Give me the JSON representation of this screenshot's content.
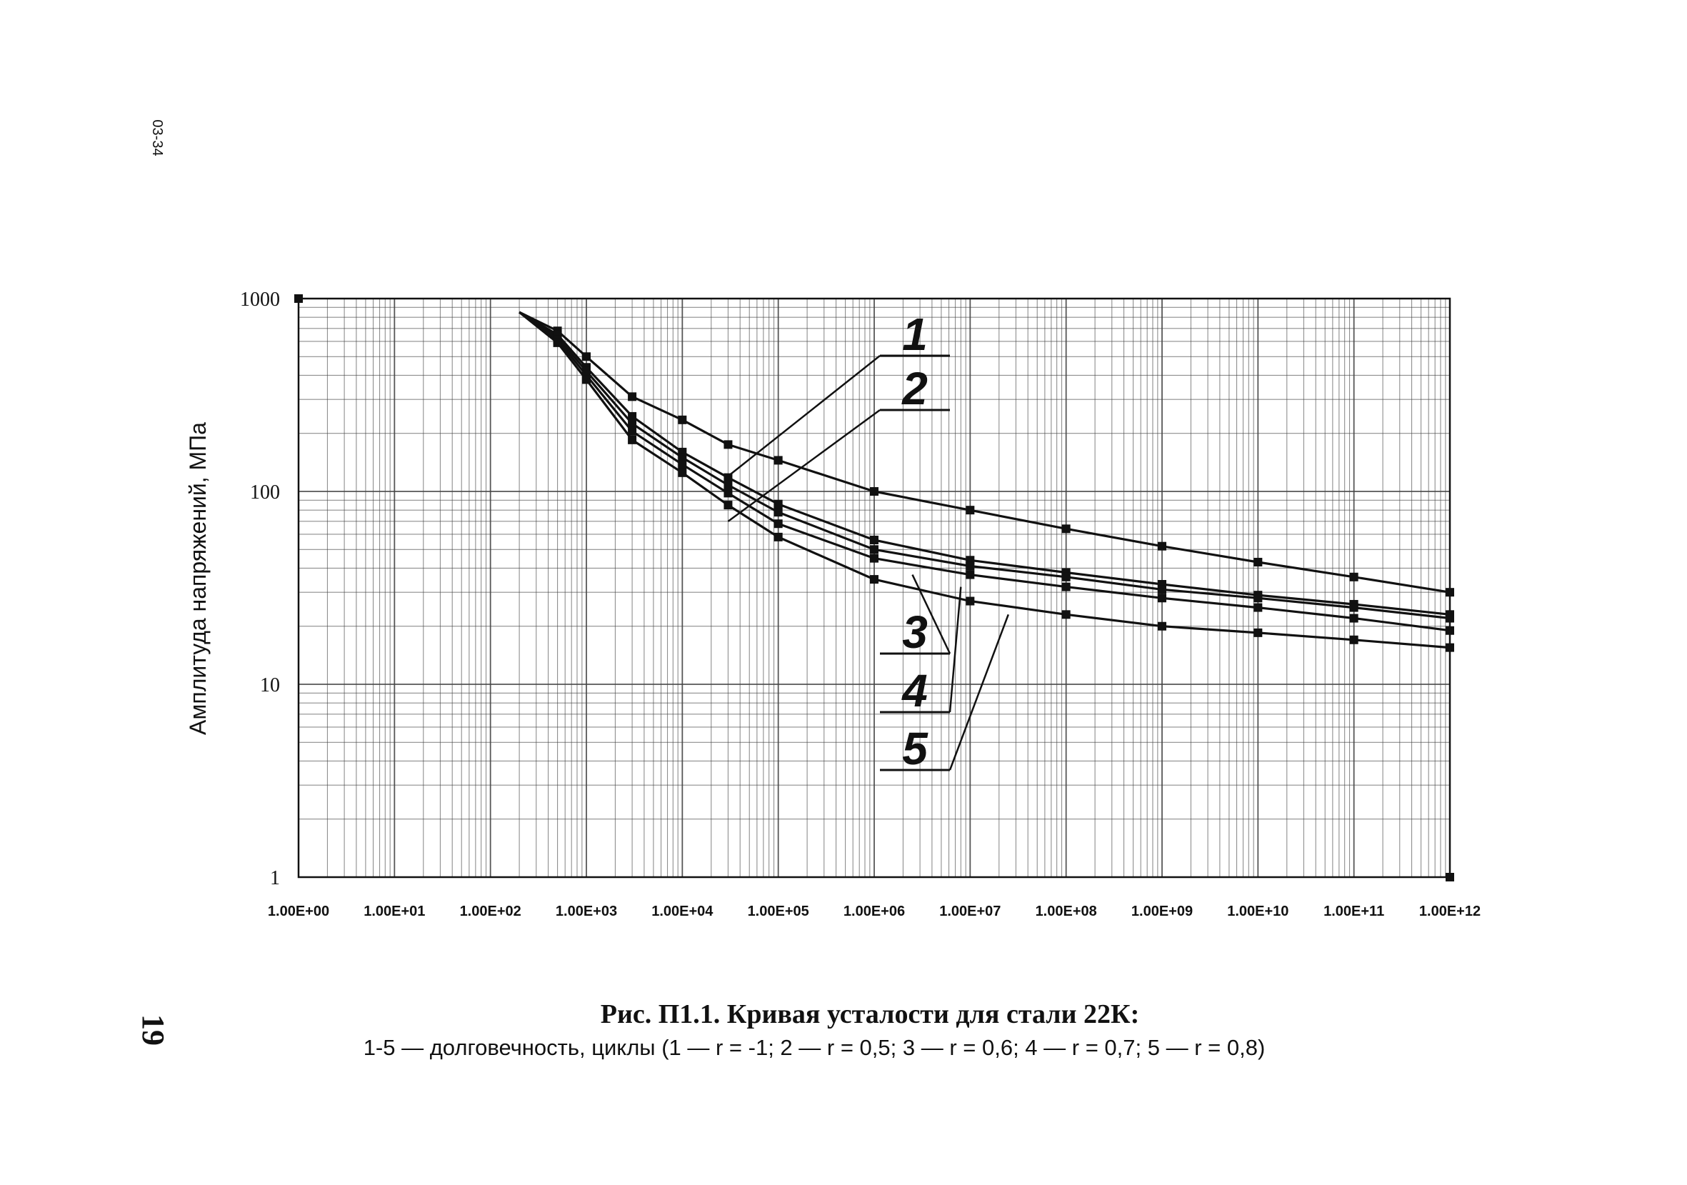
{
  "page": {
    "code": "03-34",
    "number": "19"
  },
  "caption": {
    "title": "Рис. П1.1. Кривая усталости для стали 22К:",
    "subtitle": "1-5 — долговечность, циклы (1 — r = -1; 2 — r = 0,5; 3 — r = 0,6; 4 — r = 0,7; 5 — r = 0,8)"
  },
  "chart_data": {
    "type": "line",
    "title": "",
    "xlabel": "",
    "ylabel": "Амплитуда напряжений, МПа",
    "x_scale": "log",
    "y_scale": "log",
    "xlim": [
      1,
      1000000000000
    ],
    "ylim": [
      1,
      1000
    ],
    "grid": true,
    "x_tick_labels": [
      "1.00E+00",
      "1.00E+01",
      "1.00E+02",
      "1.00E+03",
      "1.00E+04",
      "1.00E+05",
      "1.00E+06",
      "1.00E+07",
      "1.00E+08",
      "1.00E+09",
      "1.00E+10",
      "1.00E+11",
      "1.00E+12"
    ],
    "y_tick_labels": [
      "1",
      "10",
      "100",
      "1000"
    ],
    "series": [
      {
        "name": "1",
        "x": [
          200,
          500,
          1000,
          3000,
          10000,
          30000,
          100000,
          1000000,
          10000000,
          100000000,
          1000000000,
          10000000000,
          100000000000,
          1000000000000
        ],
        "y": [
          850,
          680,
          500,
          310,
          235,
          175,
          145,
          100,
          80,
          64,
          52,
          43,
          36,
          30
        ]
      },
      {
        "name": "2",
        "x": [
          200,
          500,
          1000,
          3000,
          10000,
          30000,
          100000,
          1000000,
          10000000,
          100000000,
          1000000000,
          10000000000,
          100000000000,
          1000000000000
        ],
        "y": [
          850,
          650,
          440,
          245,
          160,
          118,
          86,
          56,
          44,
          38,
          33,
          29,
          26,
          23
        ]
      },
      {
        "name": "3",
        "x": [
          200,
          500,
          1000,
          3000,
          10000,
          30000,
          100000,
          1000000,
          10000000,
          100000000,
          1000000000,
          10000000000,
          100000000000,
          1000000000000
        ],
        "y": [
          850,
          630,
          420,
          225,
          150,
          108,
          78,
          50,
          41,
          36,
          31,
          28,
          25,
          22
        ]
      },
      {
        "name": "4",
        "x": [
          200,
          500,
          1000,
          3000,
          10000,
          30000,
          100000,
          1000000,
          10000000,
          100000000,
          1000000000,
          10000000000,
          100000000000,
          1000000000000
        ],
        "y": [
          850,
          610,
          400,
          205,
          138,
          98,
          68,
          45,
          37,
          32,
          28,
          25,
          22,
          19
        ]
      },
      {
        "name": "5",
        "x": [
          200,
          500,
          1000,
          3000,
          10000,
          30000,
          100000,
          1000000,
          10000000,
          100000000,
          1000000000,
          10000000000,
          100000000000,
          1000000000000
        ],
        "y": [
          850,
          590,
          380,
          185,
          125,
          85,
          58,
          35,
          27,
          23,
          20,
          18.5,
          17,
          15.5
        ]
      }
    ],
    "callouts": [
      {
        "label": "1",
        "target_x": 30000,
        "target_y": 120
      },
      {
        "label": "2",
        "target_x": 30000,
        "target_y": 70
      },
      {
        "label": "3",
        "target_x": 2500000,
        "target_y": 37
      },
      {
        "label": "4",
        "target_x": 8000000,
        "target_y": 32
      },
      {
        "label": "5",
        "target_x": 25000000,
        "target_y": 23
      }
    ],
    "line_color": "#111111",
    "grid_color": "#444444"
  }
}
